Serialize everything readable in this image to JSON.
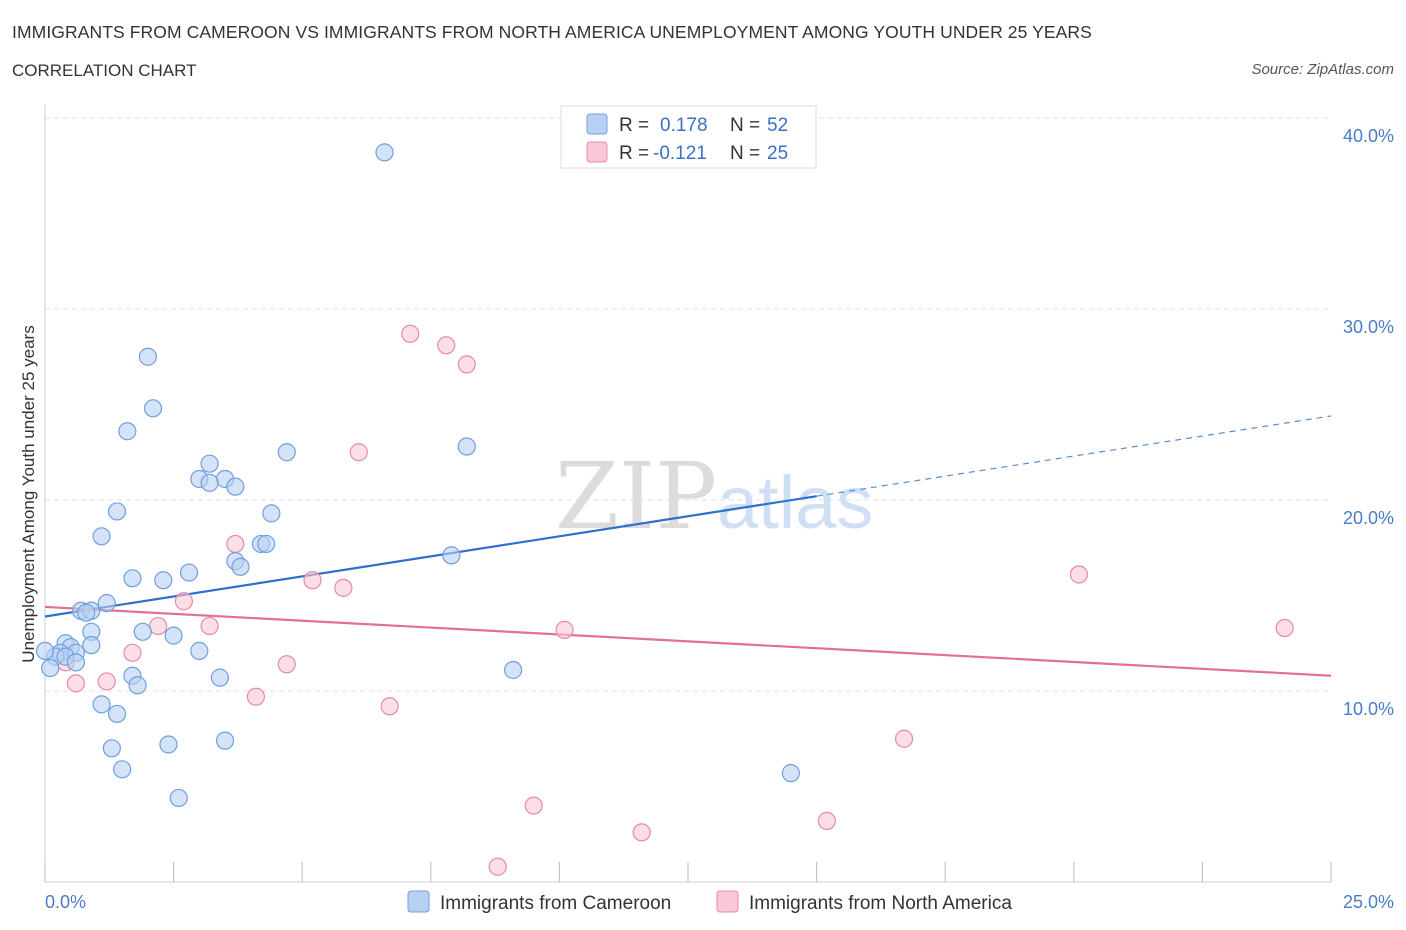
{
  "title": "IMMIGRANTS FROM CAMEROON VS IMMIGRANTS FROM NORTH AMERICA UNEMPLOYMENT AMONG YOUTH UNDER 25 YEARS",
  "subtitle": "CORRELATION CHART",
  "source": "Source: ZipAtlas.com",
  "watermark": {
    "zip": "ZIP",
    "atlas": "atlas"
  },
  "legend": {
    "r_label": "R =",
    "n_label": "N =",
    "rows": [
      {
        "r": "0.178",
        "n": "52"
      },
      {
        "r": "-0.121",
        "n": "25"
      }
    ]
  },
  "colors": {
    "cameroon_fill": "#b8d0f2",
    "cameroon_stroke": "#6f9fe0",
    "cameroon_line": "#2e6fd0",
    "na_fill": "#f8c8d6",
    "na_stroke": "#e88aa8",
    "na_line": "#e0709a"
  },
  "chart_data": {
    "type": "scatter",
    "title": "IMMIGRANTS FROM CAMEROON VS IMMIGRANTS FROM NORTH AMERICA UNEMPLOYMENT AMONG YOUTH UNDER 25 YEARS",
    "xlabel": "",
    "ylabel": "Unemployment Among Youth under 25 years",
    "xlim": [
      0,
      25
    ],
    "ylim": [
      0,
      40
    ],
    "x_tick_labels": [
      "0.0%",
      "25.0%"
    ],
    "y_ticks": [
      10,
      20,
      30,
      40
    ],
    "y_tick_labels": [
      "10.0%",
      "20.0%",
      "30.0%",
      "40.0%"
    ],
    "grid": true,
    "legend_position": "top-center",
    "series": [
      {
        "name": "Immigrants from Cameroon",
        "points": [
          [
            6.6,
            38.2
          ],
          [
            2.0,
            27.5
          ],
          [
            2.1,
            24.8
          ],
          [
            1.6,
            23.6
          ],
          [
            4.7,
            22.5
          ],
          [
            8.2,
            22.8
          ],
          [
            3.2,
            21.9
          ],
          [
            3.0,
            21.1
          ],
          [
            3.5,
            21.1
          ],
          [
            3.2,
            20.9
          ],
          [
            3.7,
            20.7
          ],
          [
            1.4,
            19.4
          ],
          [
            4.4,
            19.3
          ],
          [
            1.1,
            18.1
          ],
          [
            4.2,
            17.7
          ],
          [
            4.3,
            17.7
          ],
          [
            3.7,
            16.8
          ],
          [
            3.8,
            16.5
          ],
          [
            7.9,
            17.1
          ],
          [
            2.8,
            16.2
          ],
          [
            1.7,
            15.9
          ],
          [
            2.3,
            15.8
          ],
          [
            1.2,
            14.6
          ],
          [
            0.7,
            14.2
          ],
          [
            0.9,
            14.2
          ],
          [
            0.8,
            14.1
          ],
          [
            0.9,
            13.1
          ],
          [
            1.9,
            13.1
          ],
          [
            2.5,
            12.9
          ],
          [
            0.4,
            12.5
          ],
          [
            0.5,
            12.3
          ],
          [
            0.9,
            12.4
          ],
          [
            3.0,
            12.1
          ],
          [
            0.3,
            12.0
          ],
          [
            0.6,
            12.0
          ],
          [
            0.2,
            11.8
          ],
          [
            0.4,
            11.8
          ],
          [
            0.6,
            11.5
          ],
          [
            0.1,
            11.2
          ],
          [
            9.1,
            11.1
          ],
          [
            1.7,
            10.8
          ],
          [
            3.4,
            10.7
          ],
          [
            1.8,
            10.3
          ],
          [
            1.1,
            9.3
          ],
          [
            1.4,
            8.8
          ],
          [
            1.3,
            7.0
          ],
          [
            2.4,
            7.2
          ],
          [
            3.5,
            7.4
          ],
          [
            1.5,
            5.9
          ],
          [
            14.5,
            5.7
          ],
          [
            2.6,
            4.4
          ],
          [
            0.0,
            12.1
          ]
        ],
        "trend": {
          "x": [
            0,
            15
          ],
          "y": [
            13.9,
            20.2
          ],
          "dashed_extension": {
            "x": [
              15,
              25
            ],
            "y": [
              20.2,
              24.4
            ]
          }
        }
      },
      {
        "name": "Immigrants from North America",
        "points": [
          [
            7.1,
            28.7
          ],
          [
            7.8,
            28.1
          ],
          [
            8.2,
            27.1
          ],
          [
            6.1,
            22.5
          ],
          [
            3.7,
            17.7
          ],
          [
            5.2,
            15.8
          ],
          [
            5.8,
            15.4
          ],
          [
            2.7,
            14.7
          ],
          [
            2.2,
            13.4
          ],
          [
            3.2,
            13.4
          ],
          [
            10.1,
            13.2
          ],
          [
            24.1,
            13.3
          ],
          [
            20.1,
            16.1
          ],
          [
            1.7,
            12.0
          ],
          [
            4.7,
            11.4
          ],
          [
            0.4,
            11.5
          ],
          [
            0.6,
            10.4
          ],
          [
            1.2,
            10.5
          ],
          [
            4.1,
            9.7
          ],
          [
            6.7,
            9.2
          ],
          [
            16.7,
            7.5
          ],
          [
            9.5,
            4.0
          ],
          [
            15.2,
            3.2
          ],
          [
            11.6,
            2.6
          ],
          [
            8.8,
            0.8
          ]
        ],
        "trend": {
          "x": [
            0,
            25
          ],
          "y": [
            14.4,
            10.8
          ]
        }
      }
    ]
  }
}
